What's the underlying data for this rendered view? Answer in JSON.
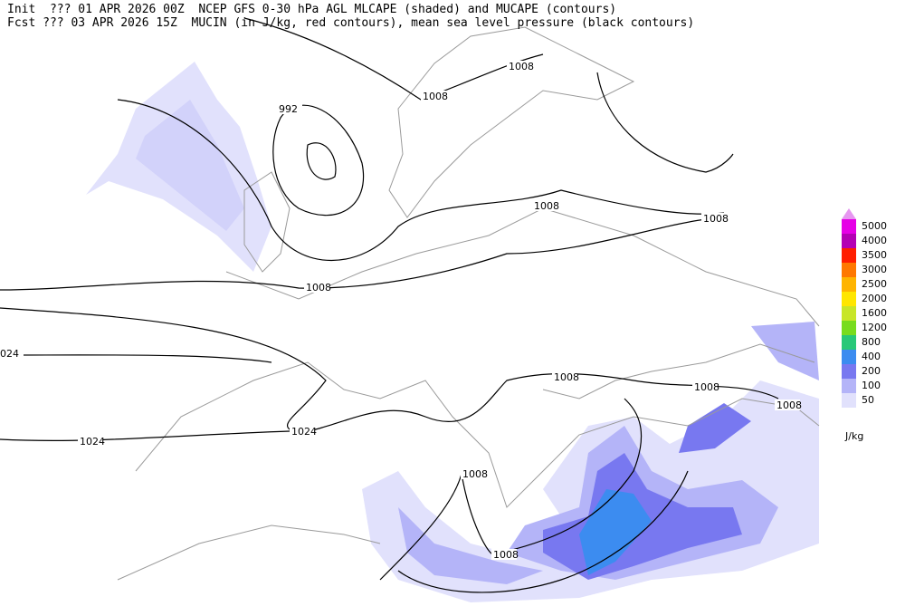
{
  "header": {
    "line1": "Init  ??? 01 APR 2026 00Z  NCEP GFS 0-30 hPa AGL MLCAPE (shaded) and MUCAPE (contours)",
    "line2": "Fcst ??? 03 APR 2026 15Z  MUCIN (in J/kg, red contours), mean sea level pressure (black contours)"
  },
  "contour_labels": [
    "1008",
    "1008",
    "992",
    "1008",
    "1008",
    "1008",
    "024",
    "1008",
    "1008",
    "1008",
    "1024",
    "1024",
    "1008",
    "1008"
  ],
  "legend": {
    "unit": "J/kg",
    "items": [
      {
        "label": "5000",
        "color": "#e600e6"
      },
      {
        "label": "4000",
        "color": "#b400b4"
      },
      {
        "label": "3500",
        "color": "#ff1e00"
      },
      {
        "label": "3000",
        "color": "#ff7800"
      },
      {
        "label": "2500",
        "color": "#ffb400"
      },
      {
        "label": "2000",
        "color": "#ffe600"
      },
      {
        "label": "1600",
        "color": "#c8e628"
      },
      {
        "label": "1200",
        "color": "#78dc1e"
      },
      {
        "label": "800",
        "color": "#28c878"
      },
      {
        "label": "400",
        "color": "#3c8cf0"
      },
      {
        "label": "200",
        "color": "#7878f0"
      },
      {
        "label": "100",
        "color": "#b4b4f8"
      },
      {
        "label": "50",
        "color": "#e1e1fc"
      }
    ]
  }
}
